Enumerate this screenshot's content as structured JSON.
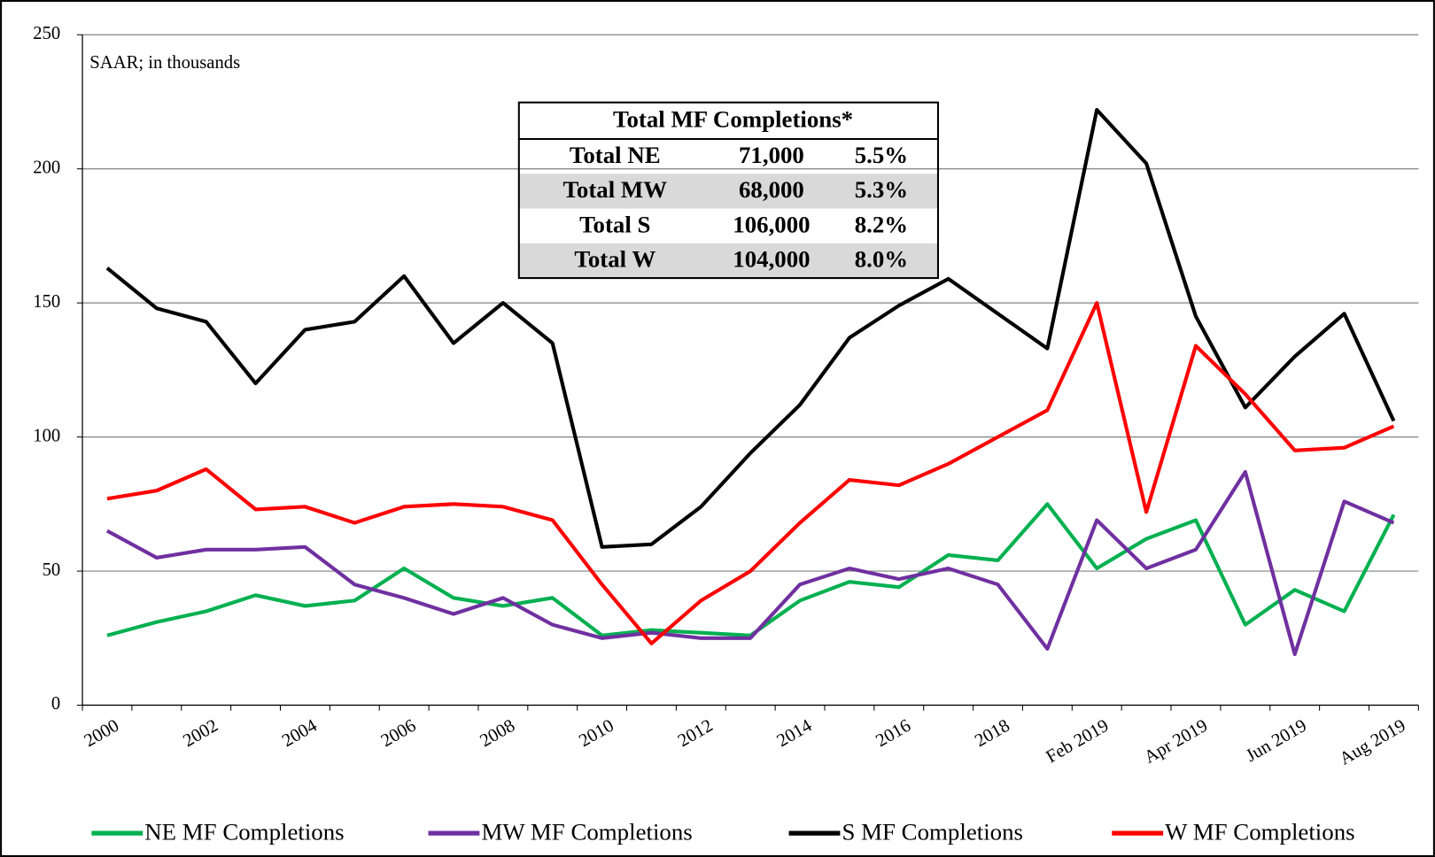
{
  "chart_data": {
    "type": "line",
    "annotation": "SAAR; in thousands",
    "categories": [
      "2000",
      null,
      "2002",
      null,
      "2004",
      null,
      "2006",
      null,
      "2008",
      null,
      "2010",
      null,
      "2012",
      null,
      "2014",
      null,
      "2016",
      null,
      "2018",
      null,
      "Feb 2019",
      null,
      "Apr 2019",
      null,
      "Jun 2019",
      null,
      "Aug 2019"
    ],
    "series": [
      {
        "name": "NE MF Completions",
        "color": "#00b050",
        "values": [
          26,
          31,
          35,
          41,
          37,
          39,
          51,
          40,
          37,
          40,
          26,
          28,
          27,
          26,
          39,
          46,
          44,
          56,
          54,
          75,
          51,
          62,
          69,
          30,
          43,
          35,
          71
        ]
      },
      {
        "name": "MW MF Completions",
        "color": "#7030a0",
        "values": [
          65,
          55,
          58,
          58,
          59,
          45,
          40,
          34,
          40,
          30,
          25,
          27,
          25,
          25,
          45,
          51,
          47,
          51,
          45,
          21,
          69,
          51,
          58,
          87,
          19,
          76,
          68
        ]
      },
      {
        "name": "S MF Completions",
        "color": "#000000",
        "values": [
          163,
          148,
          143,
          120,
          140,
          143,
          160,
          135,
          150,
          135,
          59,
          60,
          74,
          94,
          112,
          137,
          149,
          159,
          146,
          133,
          222,
          202,
          145,
          111,
          130,
          146,
          106
        ]
      },
      {
        "name": "W MF Completions",
        "color": "#ff0000",
        "values": [
          77,
          80,
          88,
          73,
          74,
          68,
          74,
          75,
          74,
          69,
          45,
          23,
          39,
          50,
          68,
          84,
          82,
          90,
          100,
          110,
          150,
          72,
          134,
          116,
          95,
          96,
          104
        ]
      }
    ],
    "ylim": [
      0,
      250
    ],
    "yticks": [
      0,
      50,
      100,
      150,
      200,
      250
    ],
    "grid": true,
    "legend": "bottom",
    "table": {
      "title": "Total MF Completions*",
      "rows": [
        [
          "Total NE",
          "71,000",
          "5.5%"
        ],
        [
          "Total MW",
          "68,000",
          "5.3%"
        ],
        [
          "Total S",
          "106,000",
          "8.2%"
        ],
        [
          "Total W",
          "104,000",
          "8.0%"
        ]
      ]
    }
  }
}
